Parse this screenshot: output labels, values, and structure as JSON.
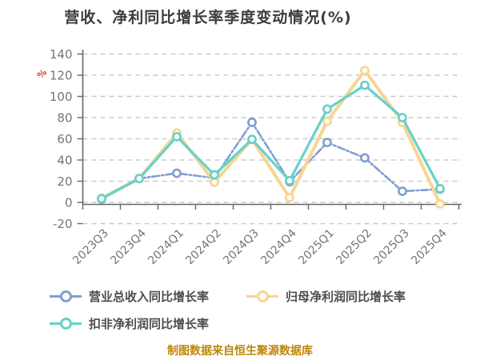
{
  "title": "营收、净利同比增长率季度变动情况(%)",
  "caption": "制图数据来自恒生聚源数据库",
  "colors": {
    "title": "#3c3c3c",
    "axis_line": "#666666",
    "tick_label": "#757575",
    "gridline": "#cccccc",
    "legend_text": "#4d4d4d",
    "caption": "#bf8609",
    "y_unit": "#cc3a1c",
    "marker_fill": "#fffef6"
  },
  "chart_data": {
    "type": "line",
    "title": "营收、净利同比增长率季度变动情况(%)",
    "categories": [
      "2023Q3",
      "2023Q4",
      "2024Q1",
      "2024Q2",
      "2024Q3",
      "2024Q4",
      "2025Q1",
      "2025Q2",
      "2025Q3",
      "2025Q4"
    ],
    "series": [
      {
        "name": "营业总收入同比增长率",
        "color": "#7e9fd4",
        "line_style": "dash-dot",
        "values": [
          3,
          22.5,
          27.5,
          23,
          75.5,
          19.5,
          56.5,
          42,
          10.5,
          12.5
        ]
      },
      {
        "name": "归母净利润同比增长率",
        "color": "#f7d591",
        "line_style": "solid",
        "values": [
          4,
          22.5,
          65.5,
          19,
          59.5,
          4.5,
          76.5,
          124.5,
          75.5,
          -1.5
        ]
      },
      {
        "name": "扣非净利润同比增长率",
        "color": "#67d1cb",
        "line_style": "solid",
        "values": [
          3.5,
          22.5,
          62,
          26,
          59.5,
          20.5,
          88,
          110.5,
          80,
          13
        ]
      }
    ],
    "xlabel": "",
    "ylabel": "%",
    "y_ticks": [
      140,
      120,
      100,
      80,
      60,
      40,
      20,
      0,
      -20
    ],
    "ylim": [
      -20,
      140
    ],
    "grid": "horizontal-dashed",
    "legend_position": "bottom",
    "x_label_rotation": -45
  }
}
